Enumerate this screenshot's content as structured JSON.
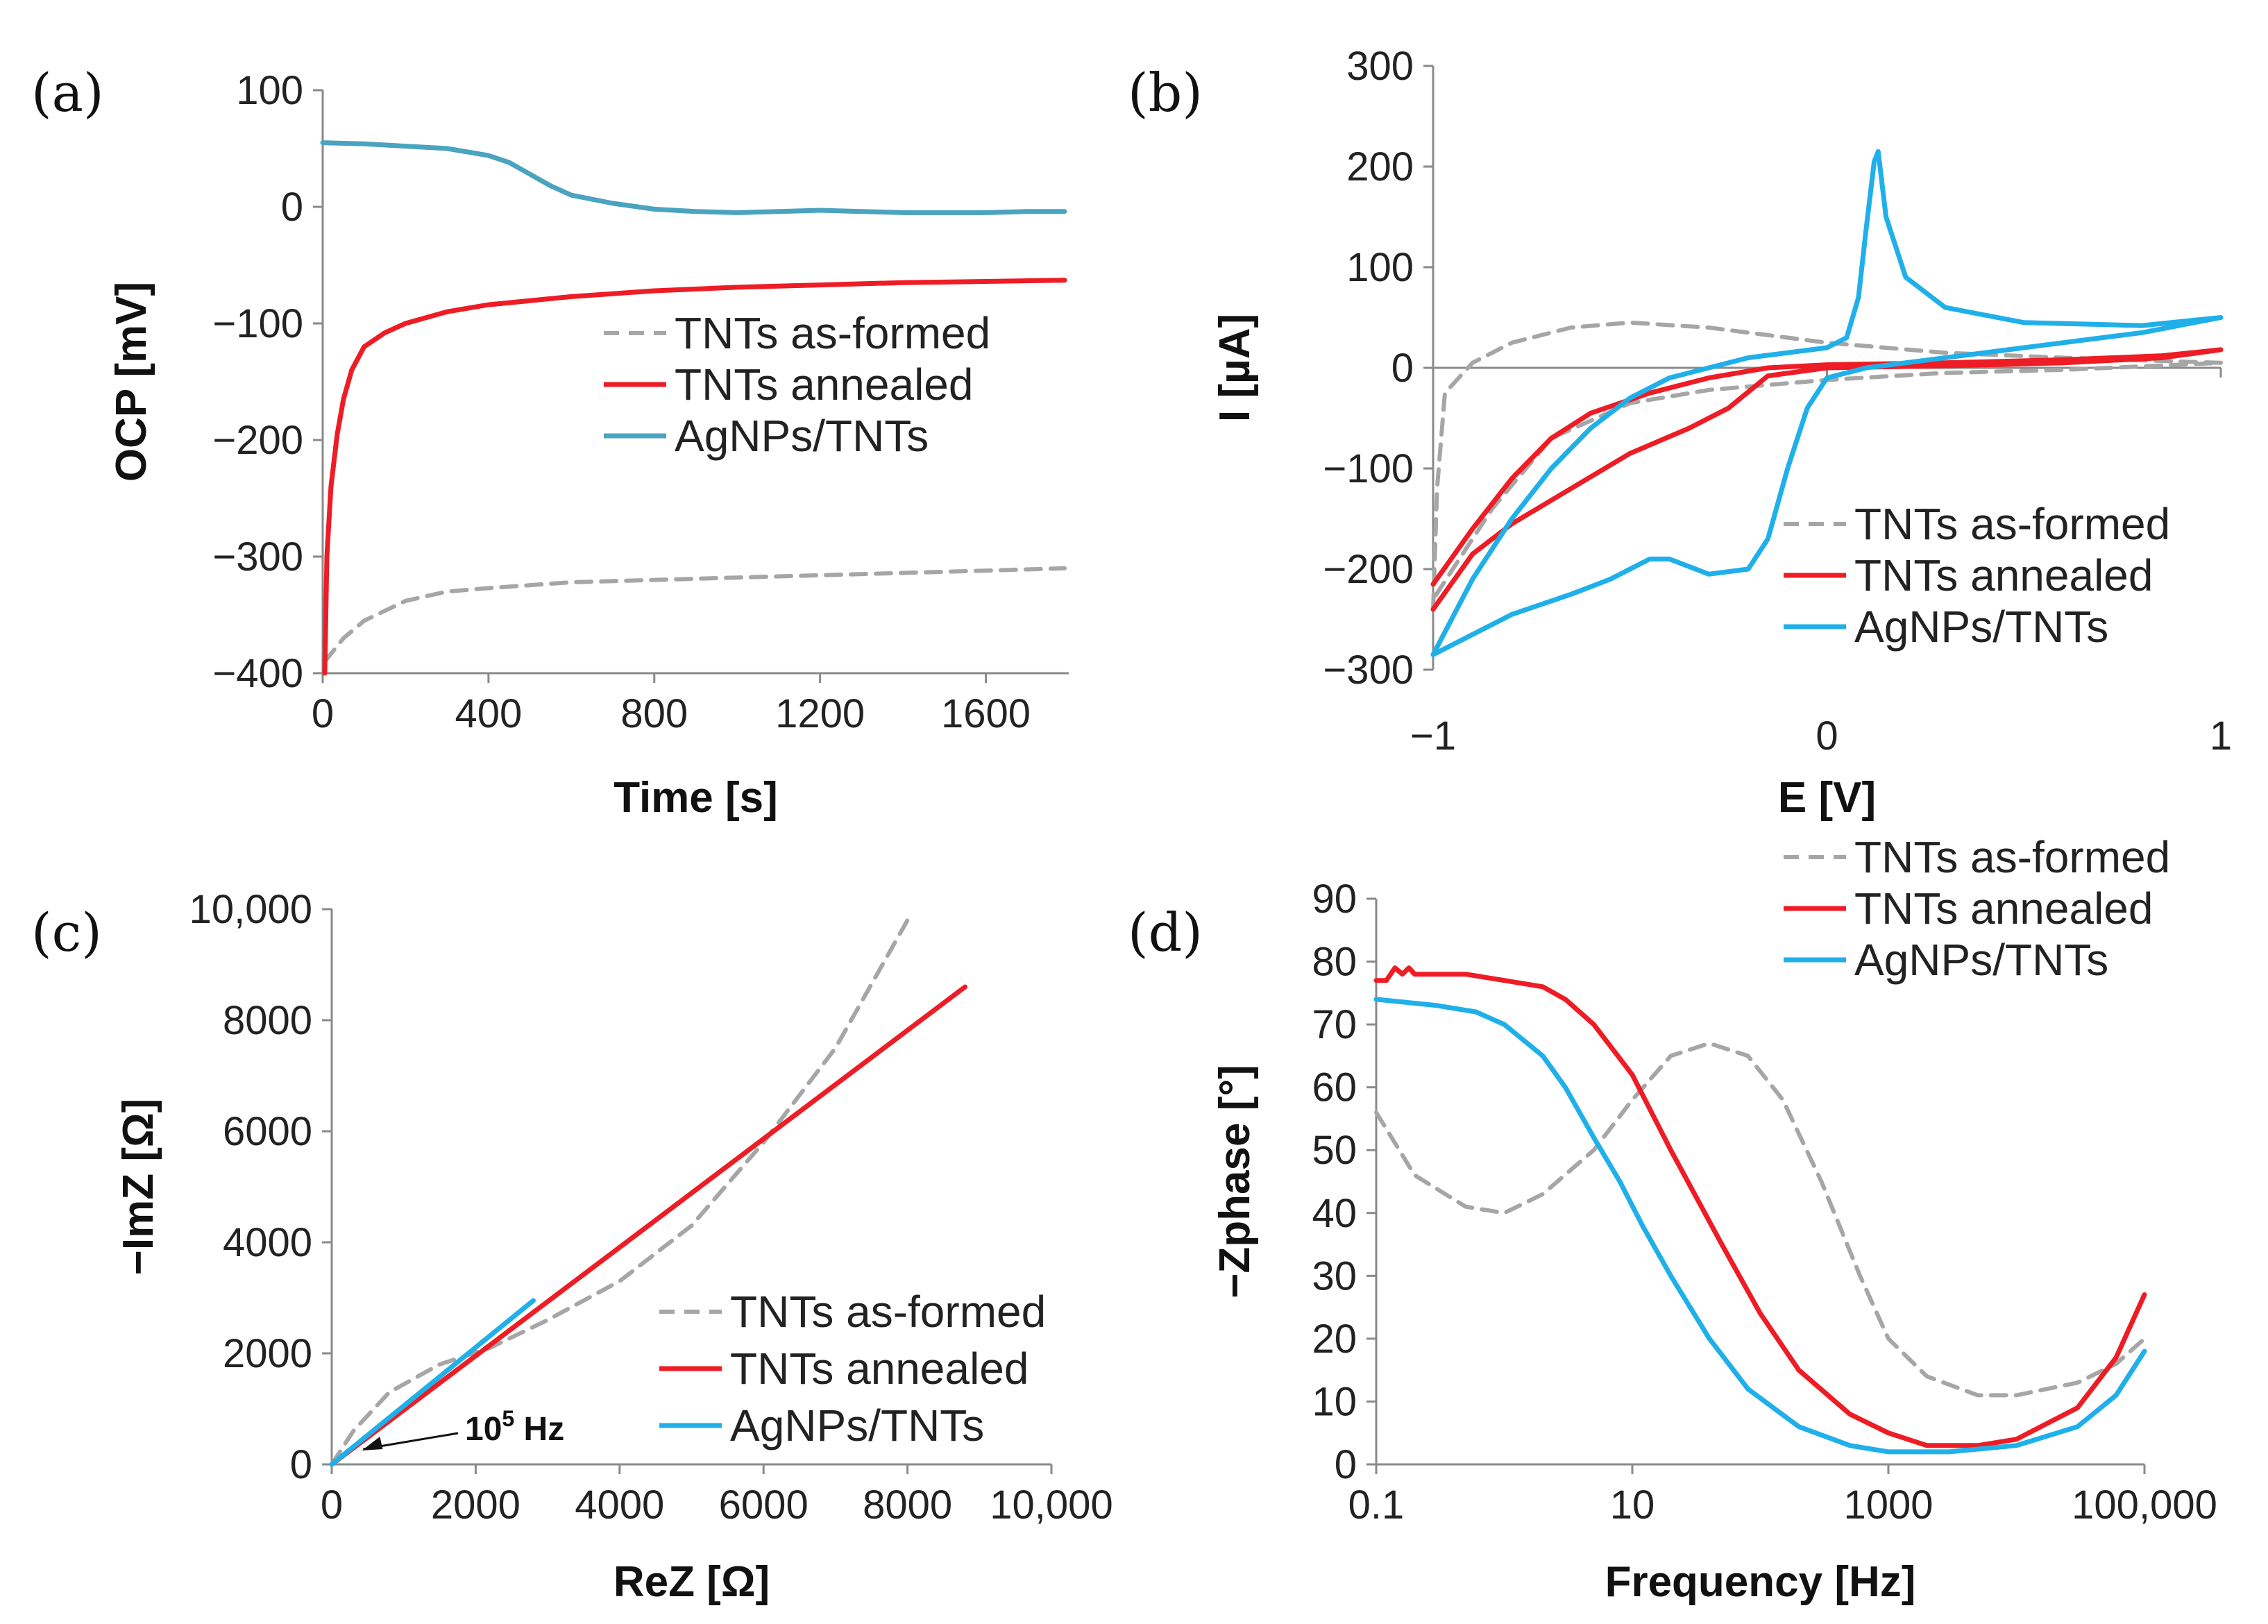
{
  "colors": {
    "as_formed": "#a6a6a6",
    "annealed": "#ee1c24",
    "agnps_a": "#4aa3bf",
    "agnps": "#1fb0ea",
    "axis": "#8a8a8a",
    "text": "#222222"
  },
  "chart_data": [
    {
      "panel": "(a)",
      "type": "line",
      "xlabel": "Time [s]",
      "ylabel": "OCP [mV]",
      "xlim": [
        0,
        1800
      ],
      "ylim": [
        -400,
        100
      ],
      "xticks": [
        0,
        400,
        800,
        1200,
        1600
      ],
      "xtick_labels": [
        "0",
        "400",
        "800",
        "1200",
        "1600"
      ],
      "yticks": [
        100,
        0,
        -100,
        -200,
        -300,
        -400
      ],
      "ytick_labels": [
        "100",
        "0",
        "−100",
        "−200",
        "−300",
        "−400"
      ],
      "legend_position": "center-right",
      "series": [
        {
          "name": "TNTs as-formed",
          "style": "dashed",
          "color": "as_formed",
          "points": [
            [
              5,
              -390
            ],
            [
              50,
              -370
            ],
            [
              100,
              -355
            ],
            [
              200,
              -338
            ],
            [
              300,
              -330
            ],
            [
              400,
              -327
            ],
            [
              600,
              -322
            ],
            [
              800,
              -320
            ],
            [
              1000,
              -318
            ],
            [
              1200,
              -316
            ],
            [
              1400,
              -314
            ],
            [
              1600,
              -312
            ],
            [
              1790,
              -310
            ]
          ]
        },
        {
          "name": "TNTs annealed",
          "style": "solid",
          "color": "annealed",
          "points": [
            [
              5,
              -400
            ],
            [
              10,
              -300
            ],
            [
              20,
              -240
            ],
            [
              35,
              -195
            ],
            [
              50,
              -165
            ],
            [
              70,
              -140
            ],
            [
              100,
              -120
            ],
            [
              150,
              -108
            ],
            [
              200,
              -100
            ],
            [
              300,
              -90
            ],
            [
              400,
              -84
            ],
            [
              600,
              -77
            ],
            [
              800,
              -72
            ],
            [
              1000,
              -69
            ],
            [
              1200,
              -67
            ],
            [
              1400,
              -65
            ],
            [
              1600,
              -64
            ],
            [
              1790,
              -63
            ]
          ]
        },
        {
          "name": "AgNPs/TNTs",
          "style": "solid",
          "color": "agnps_a",
          "points": [
            [
              0,
              55
            ],
            [
              100,
              54
            ],
            [
              200,
              52
            ],
            [
              300,
              50
            ],
            [
              350,
              47
            ],
            [
              400,
              44
            ],
            [
              450,
              38
            ],
            [
              500,
              28
            ],
            [
              550,
              18
            ],
            [
              600,
              10
            ],
            [
              700,
              3
            ],
            [
              800,
              -2
            ],
            [
              900,
              -4
            ],
            [
              1000,
              -5
            ],
            [
              1100,
              -4
            ],
            [
              1200,
              -3
            ],
            [
              1300,
              -4
            ],
            [
              1400,
              -5
            ],
            [
              1500,
              -5
            ],
            [
              1600,
              -5
            ],
            [
              1700,
              -4
            ],
            [
              1790,
              -4
            ]
          ]
        }
      ]
    },
    {
      "panel": "(b)",
      "type": "line",
      "xlabel": "E [V]",
      "ylabel": "I [µA]",
      "xlim": [
        -1,
        1
      ],
      "ylim": [
        -300,
        300
      ],
      "xticks": [
        -1,
        0,
        1
      ],
      "xtick_labels": [
        "−1",
        "0",
        "1"
      ],
      "yticks": [
        300,
        200,
        100,
        0,
        -100,
        -200,
        -300
      ],
      "ytick_labels": [
        "300",
        "200",
        "100",
        "0",
        "−100",
        "−200",
        "−300"
      ],
      "legend_position": "bottom-right",
      "series": [
        {
          "name": "TNTs as-formed",
          "style": "dashed",
          "color": "as_formed",
          "points": [
            [
              -1,
              -240
            ],
            [
              -0.99,
              -120
            ],
            [
              -0.97,
              -25
            ],
            [
              -0.9,
              5
            ],
            [
              -0.8,
              25
            ],
            [
              -0.65,
              40
            ],
            [
              -0.5,
              45
            ],
            [
              -0.3,
              40
            ],
            [
              0,
              25
            ],
            [
              0.3,
              15
            ],
            [
              0.6,
              10
            ],
            [
              1,
              5
            ],
            [
              0.6,
              -2
            ],
            [
              0.3,
              -5
            ],
            [
              0,
              -12
            ],
            [
              -0.3,
              -22
            ],
            [
              -0.5,
              -35
            ],
            [
              -0.7,
              -70
            ],
            [
              -0.85,
              -140
            ],
            [
              -1,
              -230
            ]
          ]
        },
        {
          "name": "TNTs annealed",
          "style": "solid",
          "color": "annealed",
          "points": [
            [
              -1,
              -215
            ],
            [
              -0.9,
              -160
            ],
            [
              -0.8,
              -110
            ],
            [
              -0.7,
              -70
            ],
            [
              -0.6,
              -45
            ],
            [
              -0.45,
              -25
            ],
            [
              -0.3,
              -10
            ],
            [
              -0.15,
              0
            ],
            [
              0,
              3
            ],
            [
              0.3,
              5
            ],
            [
              0.6,
              8
            ],
            [
              0.85,
              12
            ],
            [
              1,
              18
            ],
            [
              0.85,
              10
            ],
            [
              0.6,
              5
            ],
            [
              0.3,
              2
            ],
            [
              0,
              0
            ],
            [
              -0.15,
              -8
            ],
            [
              -0.25,
              -40
            ],
            [
              -0.35,
              -60
            ],
            [
              -0.5,
              -85
            ],
            [
              -0.65,
              -120
            ],
            [
              -0.8,
              -155
            ],
            [
              -0.9,
              -185
            ],
            [
              -1,
              -240
            ]
          ]
        },
        {
          "name": "AgNPs/TNTs",
          "style": "solid",
          "color": "agnps",
          "points": [
            [
              -1,
              -285
            ],
            [
              -0.9,
              -210
            ],
            [
              -0.8,
              -150
            ],
            [
              -0.7,
              -100
            ],
            [
              -0.6,
              -60
            ],
            [
              -0.5,
              -30
            ],
            [
              -0.4,
              -10
            ],
            [
              -0.3,
              0
            ],
            [
              -0.2,
              10
            ],
            [
              0,
              20
            ],
            [
              0.05,
              30
            ],
            [
              0.08,
              70
            ],
            [
              0.1,
              140
            ],
            [
              0.12,
              205
            ],
            [
              0.13,
              215
            ],
            [
              0.15,
              150
            ],
            [
              0.2,
              90
            ],
            [
              0.3,
              60
            ],
            [
              0.5,
              45
            ],
            [
              0.8,
              42
            ],
            [
              1,
              50
            ],
            [
              0.8,
              35
            ],
            [
              0.5,
              20
            ],
            [
              0.3,
              10
            ],
            [
              0.1,
              0
            ],
            [
              0,
              -10
            ],
            [
              -0.05,
              -40
            ],
            [
              -0.1,
              -100
            ],
            [
              -0.15,
              -170
            ],
            [
              -0.2,
              -200
            ],
            [
              -0.3,
              -205
            ],
            [
              -0.4,
              -190
            ],
            [
              -0.45,
              -190
            ],
            [
              -0.55,
              -210
            ],
            [
              -0.65,
              -225
            ],
            [
              -0.8,
              -245
            ],
            [
              -0.9,
              -265
            ],
            [
              -1,
              -285
            ]
          ]
        }
      ]
    },
    {
      "panel": "(c)",
      "type": "line",
      "xlabel": "ReZ [Ω]",
      "ylabel": "−ImZ [Ω]",
      "xlim": [
        0,
        10000
      ],
      "ylim": [
        0,
        10000
      ],
      "xticks": [
        0,
        2000,
        4000,
        6000,
        8000,
        10000
      ],
      "xtick_labels": [
        "0",
        "2000",
        "4000",
        "6000",
        "8000",
        "10,000"
      ],
      "yticks": [
        10000,
        8000,
        6000,
        4000,
        2000,
        0
      ],
      "ytick_labels": [
        "10,000",
        "8000",
        "6000",
        "4000",
        "2000",
        "0"
      ],
      "legend_position": "bottom-right",
      "annotation": {
        "text": "10",
        "superscript": "5",
        "suffix": " Hz",
        "points_to": [
          380,
          250
        ]
      },
      "series": [
        {
          "name": "TNTs as-formed",
          "style": "dashed",
          "color": "as_formed",
          "points": [
            [
              0,
              0
            ],
            [
              300,
              600
            ],
            [
              800,
              1300
            ],
            [
              1500,
              1800
            ],
            [
              2200,
              2100
            ],
            [
              3000,
              2600
            ],
            [
              4000,
              3300
            ],
            [
              5000,
              4300
            ],
            [
              6000,
              5800
            ],
            [
              7000,
              7500
            ],
            [
              8000,
              9800
            ]
          ]
        },
        {
          "name": "TNTs annealed",
          "style": "solid",
          "color": "annealed",
          "points": [
            [
              0,
              0
            ],
            [
              8800,
              8600
            ]
          ]
        },
        {
          "name": "AgNPs/TNTs",
          "style": "solid",
          "color": "agnps",
          "points": [
            [
              0,
              0
            ],
            [
              2800,
              2950
            ]
          ]
        }
      ]
    },
    {
      "panel": "(d)",
      "type": "line",
      "xscale": "log",
      "xlabel": "Frequency [Hz]",
      "ylabel": "−Zphase [°]",
      "xlim": [
        0.1,
        100000
      ],
      "ylim": [
        0,
        90
      ],
      "xticks": [
        0.1,
        10,
        1000,
        100000
      ],
      "xtick_labels": [
        "0.1",
        "10",
        "1000",
        "100,000"
      ],
      "yticks": [
        90,
        80,
        70,
        60,
        50,
        40,
        30,
        20,
        10,
        0
      ],
      "ytick_labels": [
        "90",
        "80",
        "70",
        "60",
        "50",
        "40",
        "30",
        "20",
        "10",
        "0"
      ],
      "legend_position": "top-right",
      "series": [
        {
          "name": "TNTs as-formed",
          "style": "dashed",
          "color": "as_formed",
          "points": [
            [
              0.1,
              56
            ],
            [
              0.2,
              46
            ],
            [
              0.5,
              41
            ],
            [
              1,
              40
            ],
            [
              2,
              43
            ],
            [
              5,
              50
            ],
            [
              10,
              58
            ],
            [
              20,
              65
            ],
            [
              40,
              67
            ],
            [
              80,
              65
            ],
            [
              150,
              58
            ],
            [
              300,
              45
            ],
            [
              600,
              30
            ],
            [
              1000,
              20
            ],
            [
              2000,
              14
            ],
            [
              5000,
              11
            ],
            [
              10000,
              11
            ],
            [
              30000,
              13
            ],
            [
              60000,
              16
            ],
            [
              100000,
              20
            ]
          ]
        },
        {
          "name": "TNTs annealed",
          "style": "solid",
          "color": "annealed",
          "points": [
            [
              0.1,
              77
            ],
            [
              0.12,
              77
            ],
            [
              0.14,
              79
            ],
            [
              0.16,
              78
            ],
            [
              0.18,
              79
            ],
            [
              0.2,
              78
            ],
            [
              0.25,
              78
            ],
            [
              0.5,
              78
            ],
            [
              1,
              77
            ],
            [
              2,
              76
            ],
            [
              3,
              74
            ],
            [
              5,
              70
            ],
            [
              10,
              62
            ],
            [
              20,
              50
            ],
            [
              50,
              35
            ],
            [
              100,
              24
            ],
            [
              200,
              15
            ],
            [
              500,
              8
            ],
            [
              1000,
              5
            ],
            [
              2000,
              3
            ],
            [
              5000,
              3
            ],
            [
              10000,
              4
            ],
            [
              30000,
              9
            ],
            [
              60000,
              17
            ],
            [
              100000,
              27
            ]
          ]
        },
        {
          "name": "AgNPs/TNTs",
          "style": "solid",
          "color": "agnps",
          "points": [
            [
              0.1,
              74
            ],
            [
              0.3,
              73
            ],
            [
              0.6,
              72
            ],
            [
              1,
              70
            ],
            [
              2,
              65
            ],
            [
              3,
              60
            ],
            [
              5,
              52
            ],
            [
              8,
              45
            ],
            [
              12,
              38
            ],
            [
              20,
              30
            ],
            [
              40,
              20
            ],
            [
              80,
              12
            ],
            [
              200,
              6
            ],
            [
              500,
              3
            ],
            [
              1000,
              2
            ],
            [
              3000,
              2
            ],
            [
              10000,
              3
            ],
            [
              30000,
              6
            ],
            [
              60000,
              11
            ],
            [
              100000,
              18
            ]
          ]
        }
      ]
    }
  ]
}
